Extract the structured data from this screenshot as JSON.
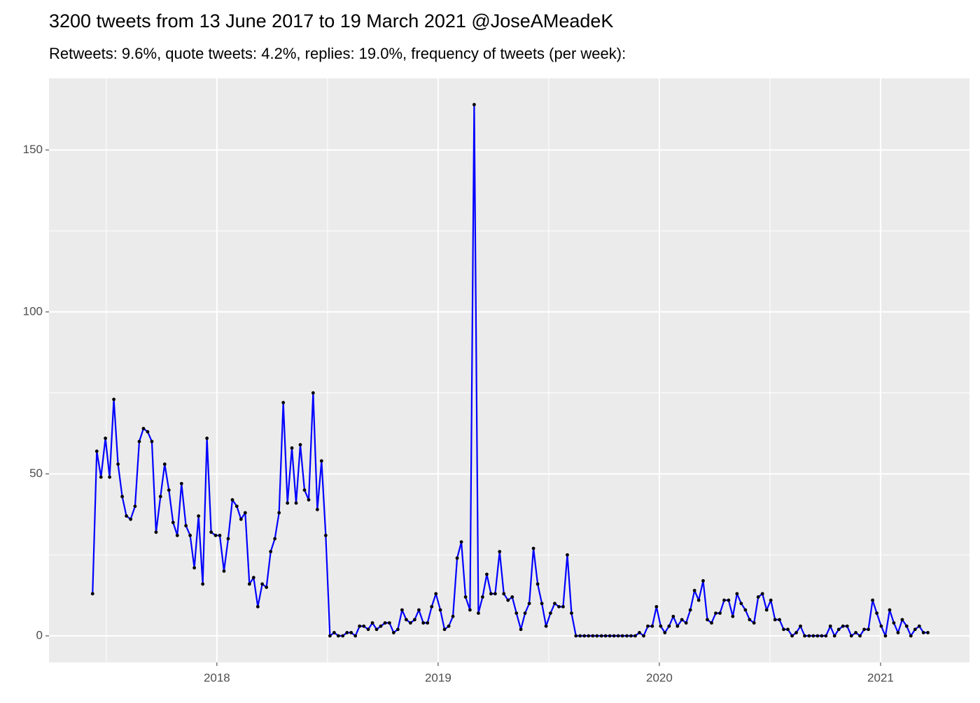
{
  "chart_data": {
    "type": "line",
    "title": "3200 tweets from 13 June 2017 to 19 March 2021 @JoseAMeadeK",
    "subtitle": "Retweets: 9.6%, quote tweets: 4.2%, replies: 19.0%, frequency of tweets (per week):",
    "x": [
      2017.438,
      2017.457,
      2017.476,
      2017.496,
      2017.515,
      2017.534,
      2017.553,
      2017.572,
      2017.591,
      2017.61,
      2017.63,
      2017.649,
      2017.668,
      2017.687,
      2017.706,
      2017.725,
      2017.745,
      2017.764,
      2017.783,
      2017.802,
      2017.821,
      2017.84,
      2017.86,
      2017.879,
      2017.898,
      2017.917,
      2017.936,
      2017.955,
      2017.974,
      2017.994,
      2018.013,
      2018.032,
      2018.051,
      2018.07,
      2018.09,
      2018.109,
      2018.128,
      2018.147,
      2018.166,
      2018.185,
      2018.205,
      2018.224,
      2018.243,
      2018.262,
      2018.281,
      2018.3,
      2018.319,
      2018.339,
      2018.358,
      2018.377,
      2018.396,
      2018.415,
      2018.435,
      2018.454,
      2018.473,
      2018.492,
      2018.511,
      2018.53,
      2018.549,
      2018.569,
      2018.588,
      2018.607,
      2018.626,
      2018.645,
      2018.664,
      2018.684,
      2018.703,
      2018.722,
      2018.741,
      2018.76,
      2018.78,
      2018.799,
      2018.818,
      2018.837,
      2018.856,
      2018.875,
      2018.894,
      2018.913,
      2018.933,
      2018.952,
      2018.971,
      2018.99,
      2019.01,
      2019.029,
      2019.048,
      2019.067,
      2019.086,
      2019.105,
      2019.124,
      2019.144,
      2019.163,
      2019.182,
      2019.201,
      2019.22,
      2019.239,
      2019.258,
      2019.278,
      2019.297,
      2019.316,
      2019.335,
      2019.354,
      2019.374,
      2019.393,
      2019.412,
      2019.431,
      2019.45,
      2019.469,
      2019.488,
      2019.508,
      2019.527,
      2019.546,
      2019.565,
      2019.584,
      2019.603,
      2019.623,
      2019.642,
      2019.661,
      2019.68,
      2019.699,
      2019.718,
      2019.738,
      2019.757,
      2019.776,
      2019.795,
      2019.814,
      2019.833,
      2019.853,
      2019.872,
      2019.891,
      2019.91,
      2019.929,
      2019.948,
      2019.968,
      2019.987,
      2020.006,
      2020.025,
      2020.044,
      2020.063,
      2020.082,
      2020.102,
      2020.121,
      2020.14,
      2020.159,
      2020.178,
      2020.198,
      2020.217,
      2020.236,
      2020.255,
      2020.274,
      2020.293,
      2020.313,
      2020.332,
      2020.351,
      2020.37,
      2020.389,
      2020.408,
      2020.428,
      2020.447,
      2020.466,
      2020.485,
      2020.504,
      2020.523,
      2020.543,
      2020.562,
      2020.581,
      2020.6,
      2020.619,
      2020.638,
      2020.657,
      2020.677,
      2020.696,
      2020.715,
      2020.734,
      2020.753,
      2020.773,
      2020.792,
      2020.811,
      2020.83,
      2020.849,
      2020.868,
      2020.888,
      2020.907,
      2020.926,
      2020.945,
      2020.964,
      2020.983,
      2021.003,
      2021.022,
      2021.041,
      2021.06,
      2021.079,
      2021.098,
      2021.118,
      2021.137,
      2021.156,
      2021.175,
      2021.194,
      2021.214
    ],
    "series": [
      {
        "color": "#0000ff",
        "marker_color": "#000000",
        "values": [
          13,
          57,
          49,
          61,
          49,
          73,
          53,
          43,
          37,
          36,
          40,
          60,
          64,
          63,
          60,
          32,
          43,
          53,
          45,
          35,
          31,
          47,
          34,
          31,
          21,
          37,
          16,
          61,
          32,
          31,
          31,
          20,
          30,
          42,
          40,
          36,
          38,
          16,
          18,
          9,
          16,
          15,
          26,
          30,
          38,
          72,
          41,
          58,
          41,
          59,
          45,
          42,
          75,
          39,
          54,
          31,
          0,
          1,
          0,
          0,
          1,
          1,
          0,
          3,
          3,
          2,
          4,
          2,
          3,
          4,
          4,
          1,
          2,
          8,
          5,
          4,
          5,
          8,
          4,
          4,
          9,
          13,
          8,
          2,
          3,
          6,
          24,
          29,
          12,
          8,
          164,
          7,
          12,
          19,
          13,
          13,
          26,
          13,
          11,
          12,
          7,
          2,
          7,
          10,
          27,
          16,
          10,
          3,
          7,
          10,
          9,
          9,
          25,
          7,
          0,
          0,
          0,
          0,
          0,
          0,
          0,
          0,
          0,
          0,
          0,
          0,
          0,
          0,
          0,
          1,
          0,
          3,
          3,
          9,
          3,
          1,
          3,
          6,
          3,
          5,
          4,
          8,
          14,
          11,
          17,
          5,
          4,
          7,
          7,
          11,
          11,
          6,
          13,
          10,
          8,
          5,
          4,
          12,
          13,
          8,
          11,
          5,
          5,
          2,
          2,
          0,
          1,
          3,
          0,
          0,
          0,
          0,
          0,
          0,
          3,
          0,
          2,
          3,
          3,
          0,
          1,
          0,
          2,
          2,
          11,
          7,
          3,
          0,
          8,
          4,
          1,
          5,
          3,
          0,
          2,
          3,
          1,
          1
        ]
      }
    ],
    "xlim": [
      2017.241,
      2021.402
    ],
    "xticks": [
      2018,
      2019,
      2020,
      2021
    ],
    "x_minor_ticks": [
      2017.5,
      2018.5,
      2019.5,
      2020.5
    ],
    "ylim": [
      -8.2,
      172.1
    ],
    "yticks": [
      0,
      50,
      100,
      150
    ],
    "y_minor_ticks": [
      25,
      75,
      125
    ],
    "grid": true
  }
}
